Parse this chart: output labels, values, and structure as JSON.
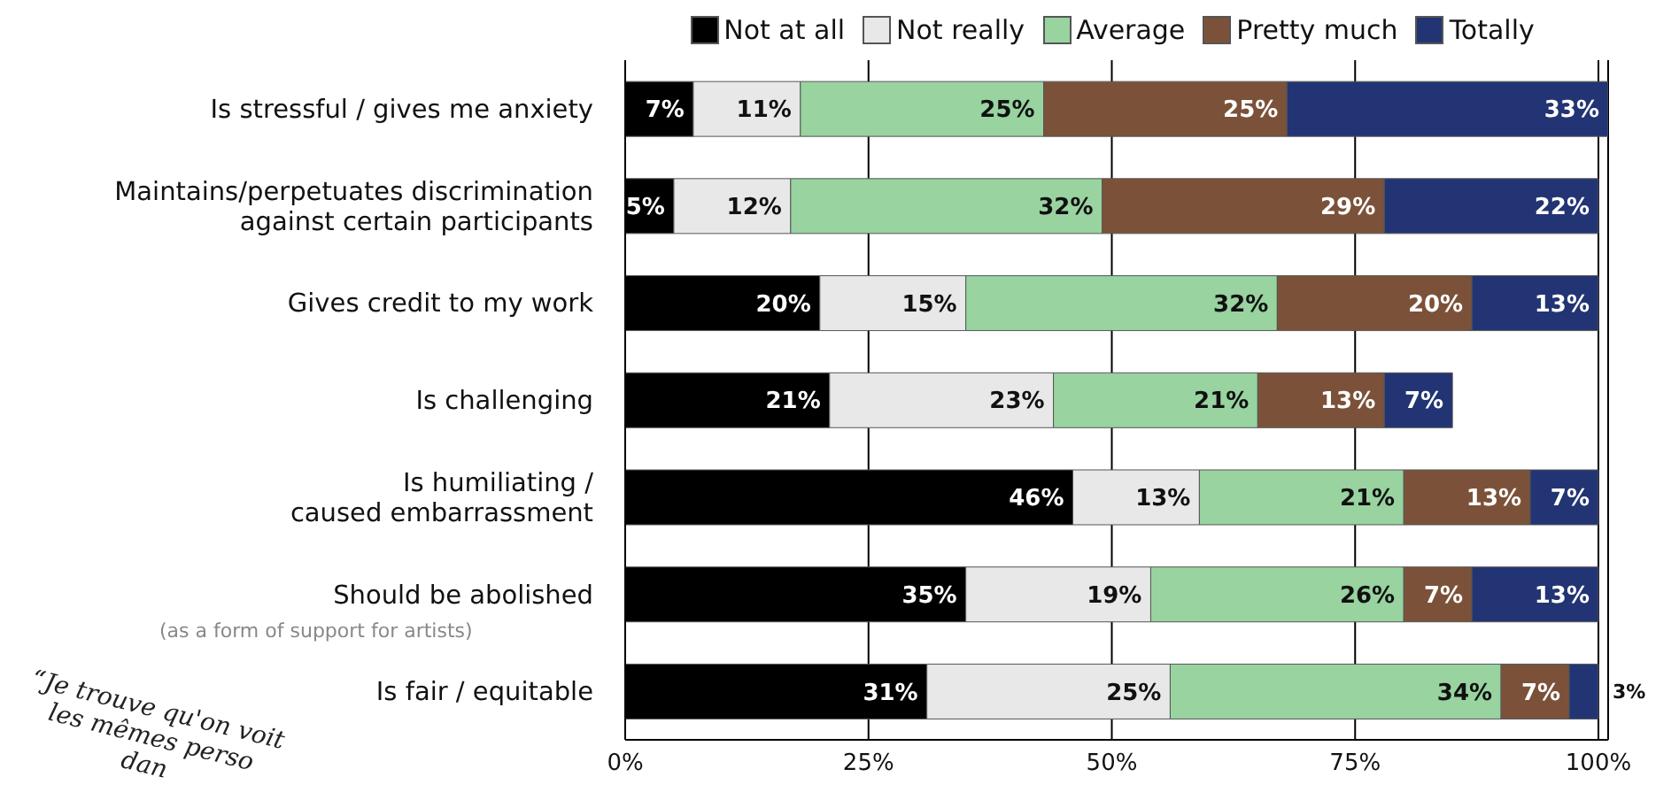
{
  "chart_data": {
    "type": "bar",
    "orientation": "horizontal",
    "stacked": true,
    "categories": [
      "Is stressful / gives me anxiety",
      "Maintains/perpetuates discrimination\nagainst certain participants",
      "Gives credit to my work",
      "Is challenging",
      "Is humiliating /\ncaused embarrassment",
      "Should be abolished",
      "Is fair / equitable"
    ],
    "series": [
      {
        "name": "Not at all",
        "color": "#000000",
        "values": [
          7,
          5,
          20,
          21,
          46,
          35,
          31
        ],
        "value_labels": [
          "7%",
          "5%",
          "20%",
          "21%",
          "46%",
          "35%",
          "31%"
        ]
      },
      {
        "name": "Not really",
        "color": "#e8e8e8",
        "values": [
          11,
          12,
          15,
          23,
          13,
          19,
          25
        ],
        "value_labels": [
          "11%",
          "12%",
          "15%",
          "23%",
          "13%",
          "19%",
          "25%"
        ]
      },
      {
        "name": "Average",
        "color": "#98d3a0",
        "values": [
          25,
          32,
          32,
          21,
          21,
          26,
          34
        ],
        "value_labels": [
          "25%",
          "32%",
          "32%",
          "21%",
          "21%",
          "26%",
          "34%"
        ]
      },
      {
        "name": "Pretty much",
        "color": "#7b5239",
        "values": [
          25,
          29,
          20,
          13,
          13,
          7,
          7
        ],
        "value_labels": [
          "25%",
          "29%",
          "20%",
          "13%",
          "13%",
          "7%",
          "7%"
        ]
      },
      {
        "name": "Totally",
        "color": "#223473",
        "values": [
          33,
          22,
          13,
          7,
          7,
          13,
          3
        ],
        "value_labels": [
          "33%",
          "22%",
          "13%",
          "7%",
          "7%",
          "13%",
          "3%"
        ]
      }
    ],
    "xlim": [
      0,
      101
    ],
    "xticks": [
      {
        "value": 0,
        "label": "0%"
      },
      {
        "value": 25,
        "label": "25%"
      },
      {
        "value": 50,
        "label": "50%"
      },
      {
        "value": 75,
        "label": "75%"
      },
      {
        "value": 100,
        "label": "100%"
      }
    ],
    "grid": "x",
    "legend": "top",
    "annotations": [
      "(as a form of support for artists)",
      "“Je trouve qu'on voit\nles mêmes perso\ndan"
    ]
  }
}
